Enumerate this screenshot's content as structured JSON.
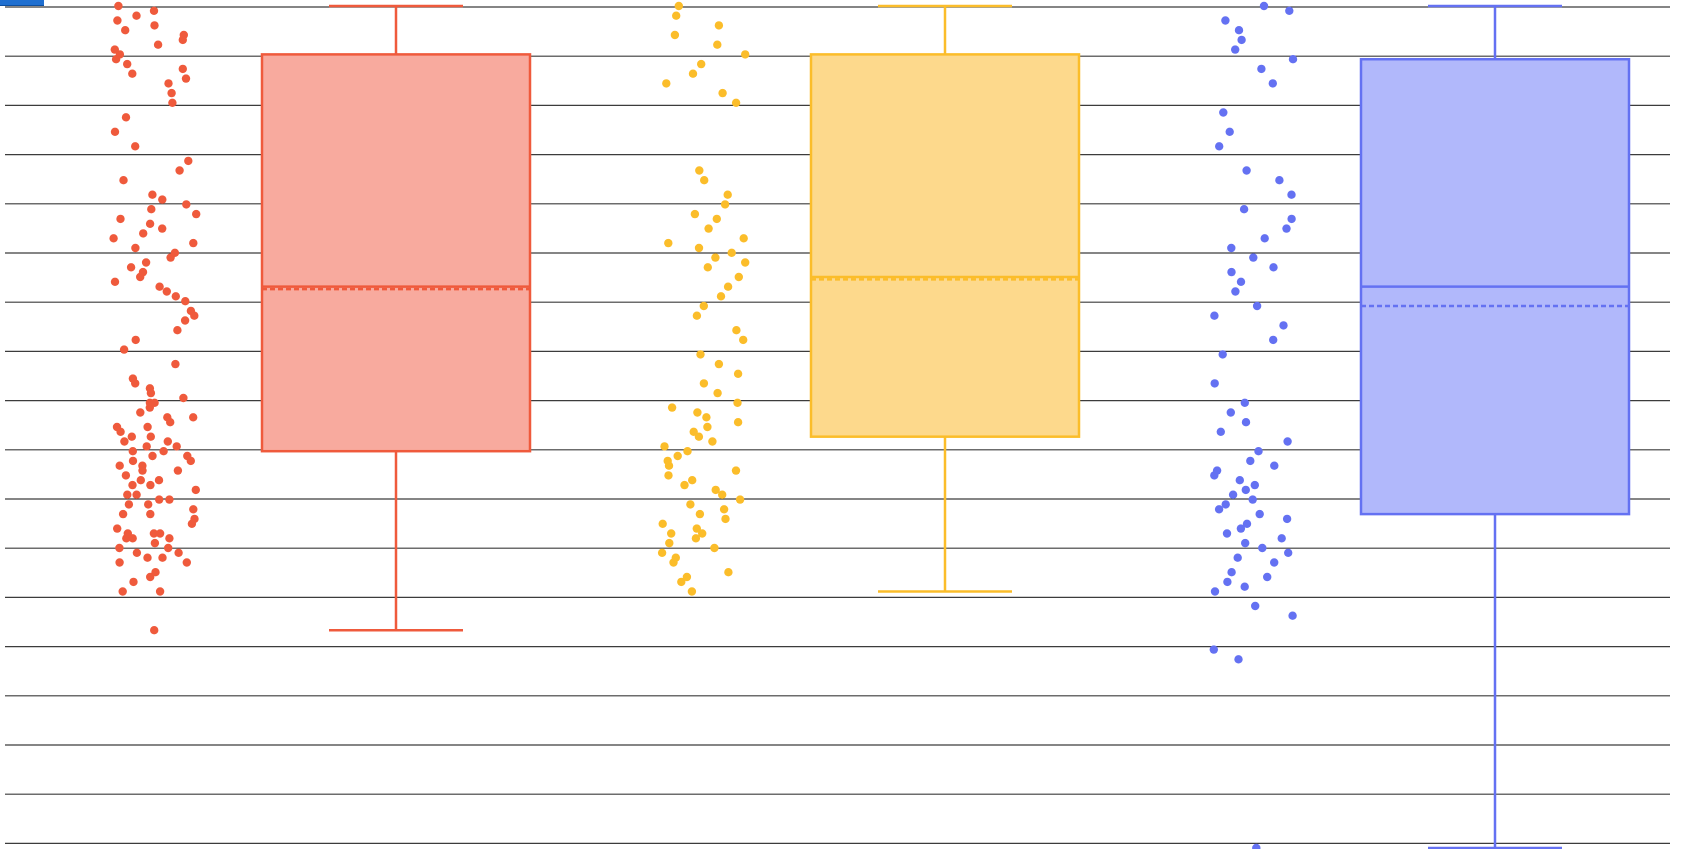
{
  "chart_data": {
    "type": "box",
    "title": "",
    "xlabel": "",
    "ylabel": "",
    "ylim": [
      0,
      17.4
    ],
    "grid": true,
    "show_points": true,
    "box_mean": true,
    "series": [
      {
        "color": "#ef5a3c",
        "fill": "#f8aa9e",
        "whisker_low": 4.5,
        "q1": 8.2,
        "median": 11.6,
        "mean": 11.55,
        "q3": 16.4,
        "whisker_high": 17.4,
        "points": [
          4.5,
          5.3,
          5.3,
          5.5,
          5.6,
          5.7,
          5.9,
          5.9,
          6.0,
          6.0,
          6.1,
          6.1,
          6.2,
          6.2,
          6.3,
          6.4,
          6.4,
          6.4,
          6.5,
          6.5,
          6.5,
          6.6,
          6.7,
          6.8,
          6.9,
          6.9,
          7.0,
          7.1,
          7.1,
          7.2,
          7.2,
          7.3,
          7.3,
          7.4,
          7.5,
          7.5,
          7.6,
          7.6,
          7.7,
          7.8,
          7.8,
          7.9,
          7.9,
          8.0,
          8.0,
          8.1,
          8.1,
          8.2,
          8.2,
          8.3,
          8.3,
          8.4,
          8.4,
          8.5,
          8.5,
          8.6,
          8.7,
          8.7,
          8.8,
          8.9,
          8.9,
          9.0,
          9.1,
          9.2,
          9.2,
          9.3,
          9.4,
          9.5,
          9.6,
          9.7,
          10.0,
          10.3,
          10.5,
          10.7,
          10.9,
          11.0,
          11.1,
          11.3,
          11.4,
          11.5,
          11.6,
          11.7,
          11.8,
          11.9,
          12.0,
          12.1,
          12.2,
          12.3,
          12.4,
          12.5,
          12.6,
          12.7,
          12.8,
          12.9,
          13.0,
          13.1,
          13.2,
          13.3,
          13.4,
          13.5,
          13.8,
          14.0,
          14.2,
          14.5,
          14.8,
          15.1,
          15.4,
          15.6,
          15.8,
          15.9,
          16.0,
          16.1,
          16.2,
          16.3,
          16.4,
          16.5,
          16.6,
          16.7,
          16.8,
          16.9,
          17.0,
          17.1,
          17.2,
          17.3,
          17.4
        ]
      },
      {
        "color": "#fbbd2a",
        "fill": "#fdd98c",
        "whisker_low": 5.3,
        "q1": 8.5,
        "median": 11.8,
        "mean": 11.75,
        "q3": 16.4,
        "whisker_high": 17.4,
        "points": [
          5.3,
          5.5,
          5.6,
          5.7,
          5.9,
          6.0,
          6.1,
          6.2,
          6.3,
          6.4,
          6.5,
          6.5,
          6.6,
          6.7,
          6.8,
          6.9,
          7.0,
          7.1,
          7.2,
          7.3,
          7.4,
          7.5,
          7.6,
          7.7,
          7.8,
          7.9,
          8.0,
          8.1,
          8.2,
          8.3,
          8.4,
          8.5,
          8.6,
          8.7,
          8.8,
          8.9,
          9.0,
          9.1,
          9.2,
          9.4,
          9.6,
          9.8,
          10.0,
          10.2,
          10.5,
          10.7,
          11.0,
          11.2,
          11.4,
          11.6,
          11.8,
          12.0,
          12.1,
          12.2,
          12.3,
          12.4,
          12.5,
          12.6,
          12.8,
          13.0,
          13.1,
          13.3,
          13.5,
          13.8,
          14.0,
          15.4,
          15.6,
          15.8,
          16.0,
          16.2,
          16.4,
          16.6,
          16.8,
          17.0,
          17.2,
          17.4
        ]
      },
      {
        "color": "#6471f2",
        "fill": "#b1b8fb",
        "whisker_low": 0.0,
        "q1": 6.9,
        "median": 11.6,
        "mean": 11.2,
        "q3": 16.3,
        "whisker_high": 17.4,
        "points": [
          0.0,
          3.9,
          4.1,
          4.8,
          5.0,
          5.3,
          5.4,
          5.5,
          5.6,
          5.7,
          5.9,
          6.0,
          6.1,
          6.2,
          6.3,
          6.4,
          6.5,
          6.6,
          6.7,
          6.8,
          6.9,
          7.0,
          7.1,
          7.2,
          7.3,
          7.4,
          7.5,
          7.6,
          7.7,
          7.8,
          7.9,
          8.0,
          8.2,
          8.4,
          8.6,
          8.8,
          9.0,
          9.2,
          9.6,
          10.2,
          10.5,
          10.8,
          11.0,
          11.2,
          11.5,
          11.7,
          11.9,
          12.0,
          12.2,
          12.4,
          12.6,
          12.8,
          13.0,
          13.2,
          13.5,
          13.8,
          14.0,
          14.5,
          14.8,
          15.2,
          15.8,
          16.1,
          16.3,
          16.5,
          16.7,
          16.9,
          17.1,
          17.3,
          17.4
        ]
      }
    ]
  }
}
